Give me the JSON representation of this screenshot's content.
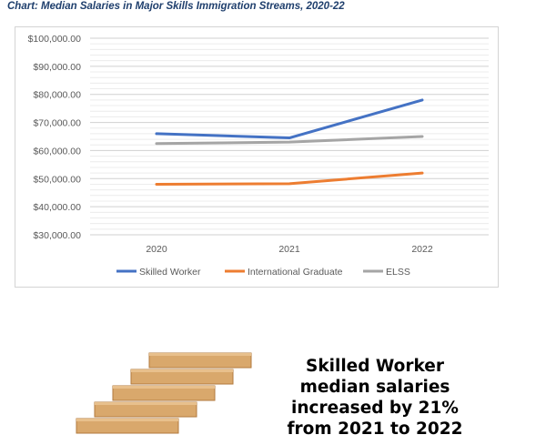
{
  "caption": "Chart: Median Salaries in Major Skills Immigration Streams, 2020-22",
  "chart_data": {
    "type": "line",
    "title": "",
    "xlabel": "",
    "ylabel": "",
    "categories": [
      "2020",
      "2021",
      "2022"
    ],
    "ylim": [
      30000,
      100000
    ],
    "ytick_labels": [
      "$100,000.00",
      "$90,000.00",
      "$80,000.00",
      "$70,000.00",
      "$60,000.00",
      "$50,000.00",
      "$40,000.00",
      "$30,000.00"
    ],
    "grid": true,
    "legend_position": "bottom",
    "series": [
      {
        "name": "Skilled Worker",
        "values": [
          66000,
          64500,
          78000
        ],
        "color": "#4472c4"
      },
      {
        "name": "International Graduate",
        "values": [
          48000,
          48200,
          52000
        ],
        "color": "#ed7d31"
      },
      {
        "name": "ELSS",
        "values": [
          62500,
          63000,
          65000
        ],
        "color": "#a5a5a5"
      }
    ]
  },
  "takeaway": {
    "lines": [
      "Skilled Worker",
      "median salaries",
      "increased by 21%",
      "from 2021 to 2022"
    ]
  },
  "colors": {
    "caption": "#1f3f6d",
    "wood_light": "#d9a86c",
    "wood_dark": "#b27a3e"
  },
  "illustration": {
    "icon": "wooden-block-stairs-icon"
  }
}
